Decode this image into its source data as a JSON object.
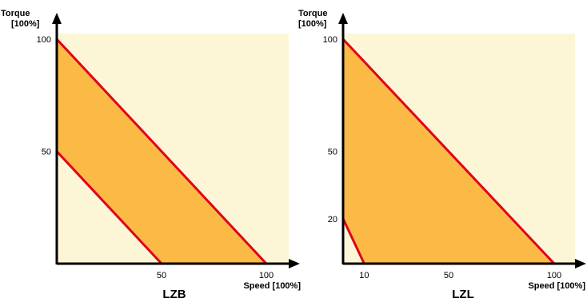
{
  "colors": {
    "background": "#fdf6d6",
    "band_fill": "#fbb945",
    "boundary": "#e0001b",
    "axis": "#000000"
  },
  "chart_data": [
    {
      "type": "area",
      "title": "LZB",
      "ylabel_line1": "Torque",
      "ylabel_line2": "[100%]",
      "xlabel": "Speed [100%]",
      "xlim": [
        0,
        110
      ],
      "ylim": [
        0,
        110
      ],
      "x_ticks": [
        50,
        100
      ],
      "y_ticks": [
        50,
        100
      ],
      "boundaries": [
        {
          "name": "upper",
          "x": [
            0,
            100
          ],
          "y": [
            100,
            0
          ]
        },
        {
          "name": "lower",
          "x": [
            0,
            50
          ],
          "y": [
            50,
            0
          ]
        }
      ]
    },
    {
      "type": "area",
      "title": "LZL",
      "ylabel_line1": "Torque",
      "ylabel_line2": "[100%]",
      "xlabel": "Speed [100%]",
      "xlim": [
        0,
        110
      ],
      "ylim": [
        0,
        110
      ],
      "x_ticks": [
        10,
        50,
        100
      ],
      "y_ticks": [
        20,
        50,
        100
      ],
      "boundaries": [
        {
          "name": "upper",
          "x": [
            0,
            100
          ],
          "y": [
            100,
            0
          ]
        },
        {
          "name": "lower",
          "x": [
            0,
            10
          ],
          "y": [
            20,
            0
          ]
        }
      ]
    }
  ]
}
